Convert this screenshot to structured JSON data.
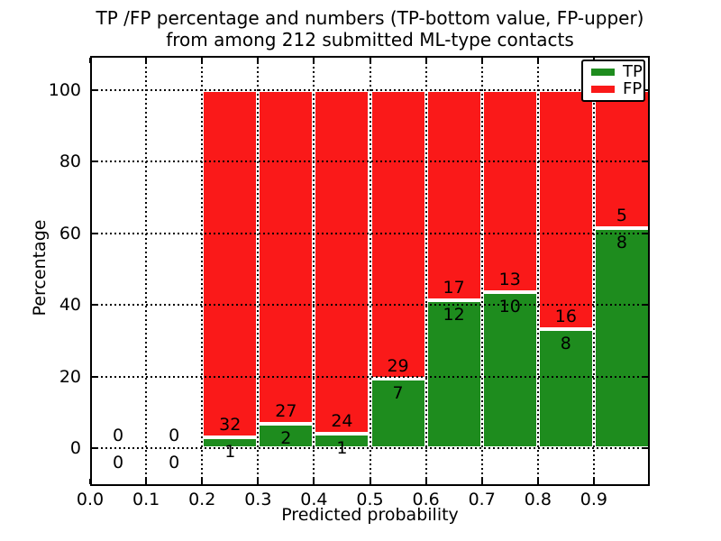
{
  "figure": {
    "title_line1": "TP /FP percentage and numbers (TP-bottom value, FP-upper)",
    "title_line2": "from among 212 submitted ML-type contacts",
    "xlabel": "Predicted probability",
    "ylabel": "Percentage"
  },
  "chart_data": {
    "type": "bar",
    "variant": "stacked-percentage-histogram",
    "title": "TP /FP percentage and numbers (TP-bottom value, FP-upper) from among 212 submitted ML-type contacts",
    "xlabel": "Predicted probability",
    "ylabel": "Percentage",
    "total_contacts": 212,
    "xlim": [
      0.0,
      1.0
    ],
    "ylim": [
      -10.6,
      109.6
    ],
    "bin_width": 0.1,
    "grid": {
      "shown": true,
      "style": "dotted"
    },
    "x_ticks": [
      {
        "value": 0.0,
        "label": "0.0"
      },
      {
        "value": 0.1,
        "label": "0.1"
      },
      {
        "value": 0.2,
        "label": "0.2"
      },
      {
        "value": 0.3,
        "label": "0.3"
      },
      {
        "value": 0.4,
        "label": "0.4"
      },
      {
        "value": 0.5,
        "label": "0.5"
      },
      {
        "value": 0.6,
        "label": "0.6"
      },
      {
        "value": 0.7,
        "label": "0.7"
      },
      {
        "value": 0.8,
        "label": "0.8"
      },
      {
        "value": 0.9,
        "label": "0.9"
      }
    ],
    "y_ticks": [
      {
        "value": 0,
        "label": "0"
      },
      {
        "value": 20,
        "label": "20"
      },
      {
        "value": 40,
        "label": "40"
      },
      {
        "value": 60,
        "label": "60"
      },
      {
        "value": 80,
        "label": "80"
      },
      {
        "value": 100,
        "label": "100"
      }
    ],
    "categories": [
      "0.0-0.1",
      "0.1-0.2",
      "0.2-0.3",
      "0.3-0.4",
      "0.4-0.5",
      "0.5-0.6",
      "0.6-0.7",
      "0.7-0.8",
      "0.8-0.9",
      "0.9-1.0"
    ],
    "bins": [
      {
        "x0": 0.0,
        "tp": 0,
        "fp": 0
      },
      {
        "x0": 0.1,
        "tp": 0,
        "fp": 0
      },
      {
        "x0": 0.2,
        "tp": 1,
        "fp": 32
      },
      {
        "x0": 0.3,
        "tp": 2,
        "fp": 27
      },
      {
        "x0": 0.4,
        "tp": 1,
        "fp": 24
      },
      {
        "x0": 0.5,
        "tp": 7,
        "fp": 29
      },
      {
        "x0": 0.6,
        "tp": 12,
        "fp": 17
      },
      {
        "x0": 0.7,
        "tp": 10,
        "fp": 13
      },
      {
        "x0": 0.8,
        "tp": 8,
        "fp": 16
      },
      {
        "x0": 0.9,
        "tp": 8,
        "fp": 5
      }
    ],
    "series": [
      {
        "name": "TP",
        "color": "#1e8c1e",
        "counts": [
          0,
          0,
          1,
          2,
          1,
          7,
          12,
          10,
          8,
          8
        ]
      },
      {
        "name": "FP",
        "color": "#fa1919",
        "counts": [
          0,
          0,
          32,
          27,
          24,
          29,
          17,
          13,
          16,
          5
        ]
      }
    ],
    "legend": {
      "position": "upper-right",
      "entries": [
        {
          "label": "TP",
          "color": "#1e8c1e"
        },
        {
          "label": "FP",
          "color": "#fa1919"
        }
      ]
    }
  },
  "colors": {
    "tp": "#1e8c1e",
    "fp": "#fa1919",
    "background": "#ffffff",
    "frame": "#000000",
    "grid": "#000000"
  }
}
